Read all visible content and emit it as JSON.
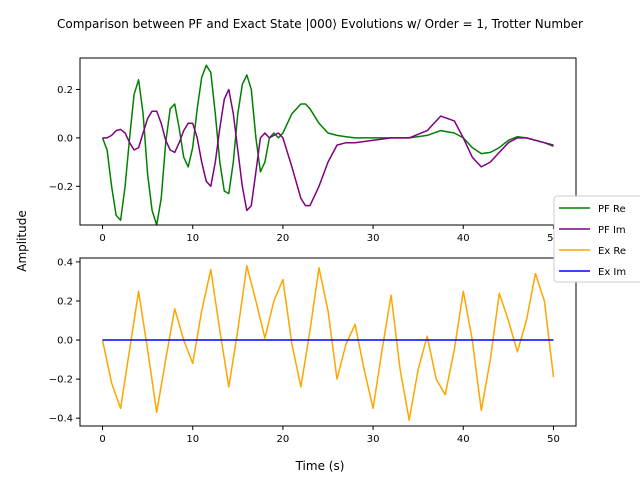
{
  "figure": {
    "title": "Comparison between PF and Exact State |000⟩ Evolutions w/ Order = 1, Trotter Number",
    "xlabel": "Time (s)",
    "ylabel": "Amplitude"
  },
  "legend": {
    "placement": "center-right",
    "entries": [
      {
        "label": "PF Re",
        "color": "#008000"
      },
      {
        "label": "PF Im",
        "color": "#800080"
      },
      {
        "label": "Ex Re",
        "color": "#FFA500"
      },
      {
        "label": "Ex Im",
        "color": "#0000FF"
      }
    ]
  },
  "chart_data": [
    {
      "type": "line",
      "xlim": [
        -2.5,
        52.5
      ],
      "ylim": [
        -0.36,
        0.33
      ],
      "xticks": [
        0,
        10,
        20,
        30,
        40,
        50
      ],
      "xtick_labels": [
        "0",
        "10",
        "20",
        "30",
        "40",
        "50"
      ],
      "yticks": [
        -0.2,
        0.0,
        0.2
      ],
      "ytick_labels": [
        "−0.2",
        "0.0",
        "0.2"
      ],
      "grid": false,
      "series": [
        {
          "name": "PF Re",
          "color": "#008000",
          "x": [
            0,
            0.5,
            1,
            1.5,
            2,
            2.5,
            3,
            3.5,
            4,
            4.5,
            5,
            5.5,
            6,
            6.5,
            7,
            7.5,
            8,
            8.5,
            9,
            9.5,
            10,
            10.5,
            11,
            11.5,
            12,
            12.5,
            13,
            13.5,
            14,
            14.5,
            15,
            15.5,
            16,
            16.5,
            17,
            17.5,
            18,
            18.5,
            19,
            19.5,
            20,
            21,
            22,
            22.5,
            23,
            24,
            25,
            26,
            27,
            28,
            30,
            32,
            34,
            36,
            37.5,
            39,
            40,
            41,
            42,
            43,
            44,
            45,
            46,
            47,
            48,
            49,
            50
          ],
          "y": [
            0,
            -0.05,
            -0.2,
            -0.32,
            -0.34,
            -0.2,
            0.0,
            0.18,
            0.24,
            0.1,
            -0.15,
            -0.3,
            -0.36,
            -0.25,
            -0.02,
            0.12,
            0.14,
            0.04,
            -0.08,
            -0.12,
            -0.04,
            0.12,
            0.25,
            0.3,
            0.27,
            0.1,
            -0.1,
            -0.22,
            -0.23,
            -0.1,
            0.1,
            0.22,
            0.26,
            0.2,
            0.0,
            -0.14,
            -0.1,
            0.0,
            0.02,
            0.0,
            0.02,
            0.1,
            0.14,
            0.14,
            0.12,
            0.06,
            0.02,
            0.01,
            0.005,
            0.0,
            0.0,
            0.0,
            0.0,
            0.01,
            0.03,
            0.02,
            0.0,
            -0.04,
            -0.065,
            -0.06,
            -0.04,
            -0.01,
            0.005,
            0.0,
            -0.01,
            -0.02,
            -0.035
          ]
        },
        {
          "name": "PF Im",
          "color": "#800080",
          "x": [
            0,
            0.5,
            1,
            1.5,
            2,
            2.5,
            3,
            3.5,
            4,
            4.5,
            5,
            5.5,
            6,
            6.5,
            7,
            7.5,
            8,
            8.5,
            9,
            9.5,
            10,
            10.5,
            11,
            11.5,
            12,
            12.5,
            13,
            13.5,
            14,
            14.5,
            15,
            15.5,
            16,
            16.5,
            17,
            17.5,
            18,
            18.5,
            19,
            19.5,
            20,
            21,
            22,
            22.5,
            23,
            24,
            25,
            26,
            27,
            28,
            30,
            32,
            34,
            36,
            37.5,
            39,
            40,
            41,
            42,
            43,
            44,
            45,
            46,
            47,
            48,
            49,
            50
          ],
          "y": [
            0,
            0.0,
            0.01,
            0.03,
            0.035,
            0.02,
            -0.02,
            -0.05,
            -0.04,
            0.02,
            0.08,
            0.11,
            0.11,
            0.06,
            -0.01,
            -0.05,
            -0.06,
            -0.02,
            0.03,
            0.06,
            0.06,
            0.0,
            -0.1,
            -0.18,
            -0.2,
            -0.1,
            0.04,
            0.16,
            0.2,
            0.1,
            -0.05,
            -0.2,
            -0.3,
            -0.28,
            -0.14,
            0.0,
            0.02,
            0.0,
            0.01,
            0.02,
            0.0,
            -0.12,
            -0.25,
            -0.28,
            -0.28,
            -0.2,
            -0.1,
            -0.03,
            -0.02,
            -0.02,
            -0.01,
            0.0,
            0.0,
            0.03,
            0.09,
            0.07,
            0.0,
            -0.08,
            -0.12,
            -0.1,
            -0.06,
            -0.02,
            0.0,
            0.0,
            -0.01,
            -0.02,
            -0.03
          ]
        }
      ]
    },
    {
      "type": "line",
      "xlim": [
        -2.5,
        52.5
      ],
      "ylim": [
        -0.44,
        0.42
      ],
      "xticks": [
        0,
        10,
        20,
        30,
        40,
        50
      ],
      "xtick_labels": [
        "0",
        "10",
        "20",
        "30",
        "40",
        "50"
      ],
      "yticks": [
        -0.4,
        -0.2,
        0.0,
        0.2,
        0.4
      ],
      "ytick_labels": [
        "−0.4",
        "−0.2",
        "0.0",
        "0.2",
        "0.4"
      ],
      "grid": false,
      "series": [
        {
          "name": "Ex Re",
          "color": "#FFA500",
          "x": [
            0,
            1,
            2,
            3,
            4,
            5,
            6,
            7,
            8,
            9,
            10,
            11,
            12,
            13,
            14,
            15,
            16,
            17,
            18,
            19,
            20,
            21,
            22,
            23,
            24,
            25,
            26,
            27,
            28,
            29,
            30,
            31,
            32,
            33,
            34,
            35,
            36,
            37,
            38,
            39,
            40,
            41,
            42,
            43,
            44,
            45,
            46,
            47,
            48,
            49,
            50
          ],
          "y": [
            0,
            -0.22,
            -0.35,
            -0.05,
            0.25,
            -0.05,
            -0.37,
            -0.1,
            0.16,
            0.0,
            -0.12,
            0.15,
            0.36,
            0.05,
            -0.24,
            0.05,
            0.38,
            0.2,
            0.01,
            0.2,
            0.31,
            -0.02,
            -0.24,
            0.05,
            0.37,
            0.15,
            -0.2,
            -0.02,
            0.08,
            -0.15,
            -0.35,
            -0.05,
            0.23,
            -0.15,
            -0.41,
            -0.15,
            0.02,
            -0.2,
            -0.28,
            -0.05,
            0.25,
            0.0,
            -0.36,
            -0.1,
            0.24,
            0.1,
            -0.06,
            0.1,
            0.34,
            0.2,
            -0.19
          ]
        },
        {
          "name": "Ex Im",
          "color": "#0000FF",
          "x": [
            0,
            50
          ],
          "y": [
            0,
            0
          ]
        }
      ]
    }
  ]
}
